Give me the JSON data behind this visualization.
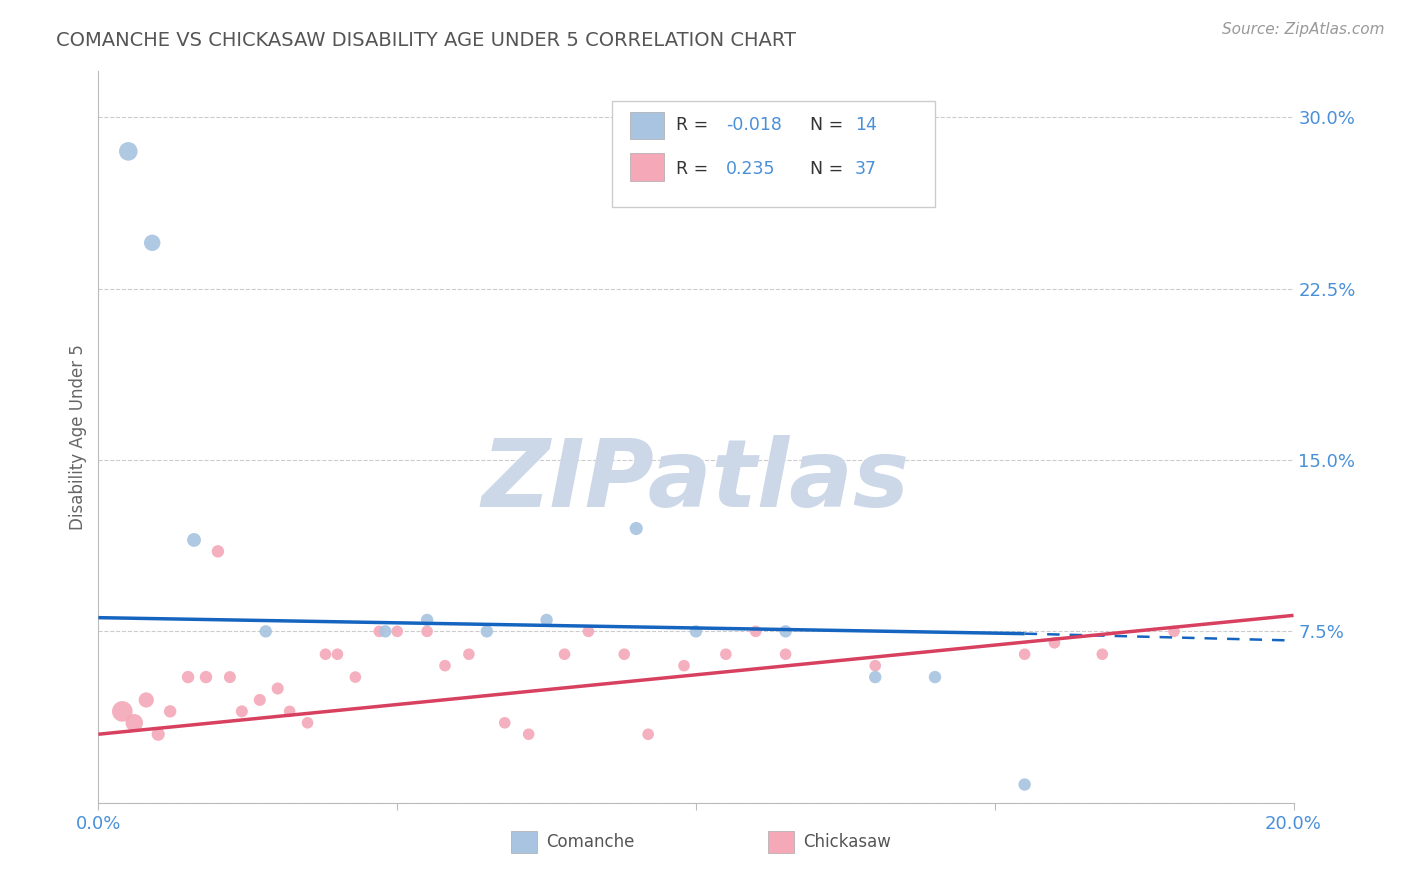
{
  "title": "COMANCHE VS CHICKASAW DISABILITY AGE UNDER 5 CORRELATION CHART",
  "source_text": "Source: ZipAtlas.com",
  "ylabel": "Disability Age Under 5",
  "xlim": [
    0.0,
    0.2
  ],
  "ylim": [
    0.0,
    0.32
  ],
  "yticks": [
    0.0,
    0.075,
    0.15,
    0.225,
    0.3
  ],
  "ytick_labels": [
    "",
    "7.5%",
    "15.0%",
    "22.5%",
    "30.0%"
  ],
  "xticks": [
    0.0,
    0.05,
    0.1,
    0.15,
    0.2
  ],
  "xtick_labels": [
    "0.0%",
    "",
    "",
    "",
    "20.0%"
  ],
  "comanche_R": -0.018,
  "comanche_N": 14,
  "chickasaw_R": 0.235,
  "chickasaw_N": 37,
  "comanche_color": "#a8c4e0",
  "chickasaw_color": "#f4a8b8",
  "comanche_x": [
    0.005,
    0.009,
    0.016,
    0.028,
    0.048,
    0.055,
    0.065,
    0.075,
    0.09,
    0.1,
    0.115,
    0.13,
    0.14,
    0.155
  ],
  "comanche_y": [
    0.285,
    0.245,
    0.115,
    0.075,
    0.075,
    0.08,
    0.075,
    0.08,
    0.12,
    0.075,
    0.075,
    0.055,
    0.055,
    0.008
  ],
  "chickasaw_x": [
    0.004,
    0.006,
    0.008,
    0.01,
    0.012,
    0.015,
    0.018,
    0.02,
    0.022,
    0.024,
    0.027,
    0.03,
    0.032,
    0.035,
    0.038,
    0.04,
    0.043,
    0.047,
    0.05,
    0.055,
    0.058,
    0.062,
    0.068,
    0.072,
    0.078,
    0.082,
    0.088,
    0.092,
    0.098,
    0.105,
    0.11,
    0.115,
    0.13,
    0.155,
    0.16,
    0.168,
    0.18
  ],
  "chickasaw_y": [
    0.04,
    0.035,
    0.045,
    0.03,
    0.04,
    0.055,
    0.055,
    0.11,
    0.055,
    0.04,
    0.045,
    0.05,
    0.04,
    0.035,
    0.065,
    0.065,
    0.055,
    0.075,
    0.075,
    0.075,
    0.06,
    0.065,
    0.035,
    0.03,
    0.065,
    0.075,
    0.065,
    0.03,
    0.06,
    0.065,
    0.075,
    0.065,
    0.06,
    0.065,
    0.07,
    0.065,
    0.075
  ],
  "comanche_sizes": [
    180,
    140,
    100,
    80,
    80,
    80,
    80,
    80,
    90,
    80,
    80,
    80,
    80,
    80
  ],
  "chickasaw_sizes": [
    220,
    160,
    120,
    90,
    80,
    80,
    80,
    80,
    75,
    75,
    75,
    75,
    70,
    70,
    70,
    70,
    70,
    70,
    70,
    70,
    70,
    70,
    70,
    70,
    70,
    70,
    70,
    70,
    70,
    70,
    70,
    70,
    70,
    70,
    70,
    70,
    70
  ],
  "comanche_line_color": "#1565c0",
  "chickasaw_line_color": "#d84060",
  "watermark_text": "ZIPatlas",
  "watermark_color": "#ccd8e8",
  "background_color": "#ffffff",
  "grid_color": "#cccccc",
  "axis_label_color": "#4a90d9",
  "title_color": "#555555"
}
